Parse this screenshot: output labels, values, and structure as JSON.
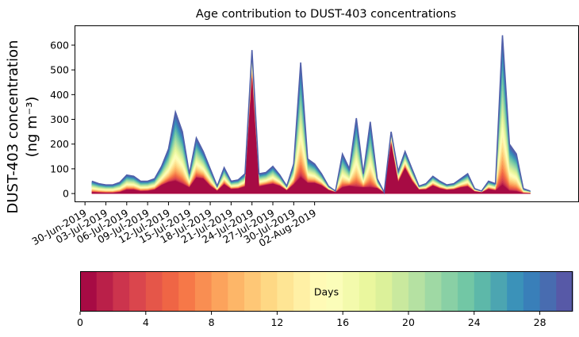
{
  "chart_data": {
    "type": "area",
    "title": "Age contribution to DUST-403 concentrations",
    "ylabel_line1": "DUST-403 concentration",
    "ylabel_line2": "(ng m⁻³)",
    "ylim": [
      -35,
      680
    ],
    "yticks": [
      0,
      100,
      200,
      300,
      400,
      500,
      600
    ],
    "x_start_date": "2019-07-01",
    "x_step_days": 0.5,
    "xlim_index": [
      -5,
      140
    ],
    "xtick_labels": [
      "30-Jun-2019",
      "03-Jul-2019",
      "06-Jul-2019",
      "09-Jul-2019",
      "12-Jul-2019",
      "15-Jul-2019",
      "18-Jul-2019",
      "21-Jul-2019",
      "24-Jul-2019",
      "27-Jul-2019",
      "30-Jul-2019",
      "02-Aug-2019"
    ],
    "xtick_index": [
      -2,
      4,
      10,
      16,
      22,
      28,
      34,
      40,
      46,
      52,
      58,
      64
    ],
    "n_age_bins": 30,
    "series_name": "total concentration",
    "total_values": [
      50,
      40,
      35,
      35,
      45,
      75,
      70,
      50,
      50,
      60,
      110,
      180,
      330,
      250,
      80,
      225,
      170,
      100,
      30,
      105,
      50,
      55,
      80,
      580,
      80,
      85,
      110,
      75,
      30,
      120,
      530,
      140,
      120,
      80,
      30,
      10,
      160,
      100,
      305,
      80,
      290,
      60,
      5,
      250,
      90,
      170,
      100,
      30,
      40,
      70,
      50,
      35,
      40,
      60,
      80,
      20,
      10,
      50,
      40,
      640,
      200,
      160,
      20,
      10
    ],
    "red_fraction": [
      0.1,
      0.08,
      0.06,
      0.06,
      0.12,
      0.2,
      0.22,
      0.18,
      0.2,
      0.25,
      0.3,
      0.25,
      0.15,
      0.15,
      0.3,
      0.28,
      0.35,
      0.3,
      0.35,
      0.35,
      0.35,
      0.35,
      0.35,
      0.8,
      0.35,
      0.4,
      0.35,
      0.4,
      0.4,
      0.3,
      0.12,
      0.3,
      0.35,
      0.4,
      0.45,
      0.5,
      0.15,
      0.3,
      0.08,
      0.3,
      0.08,
      0.35,
      0.6,
      0.8,
      0.5,
      0.6,
      0.5,
      0.5,
      0.4,
      0.45,
      0.4,
      0.4,
      0.4,
      0.4,
      0.35,
      0.4,
      0.4,
      0.35,
      0.3,
      0.05,
      0.05,
      0.05,
      0.05,
      0.05
    ],
    "cbar_label": "Days",
    "cbar_range": [
      0,
      30
    ],
    "cbar_ticks": [
      0,
      4,
      8,
      12,
      16,
      20,
      24,
      28
    ],
    "colormap_stops": [
      "#9e0142",
      "#d53e4f",
      "#f46d43",
      "#fdae61",
      "#fee08b",
      "#ffffbf",
      "#e6f598",
      "#abdda4",
      "#66c2a5",
      "#3288bd",
      "#5e4fa2"
    ]
  }
}
